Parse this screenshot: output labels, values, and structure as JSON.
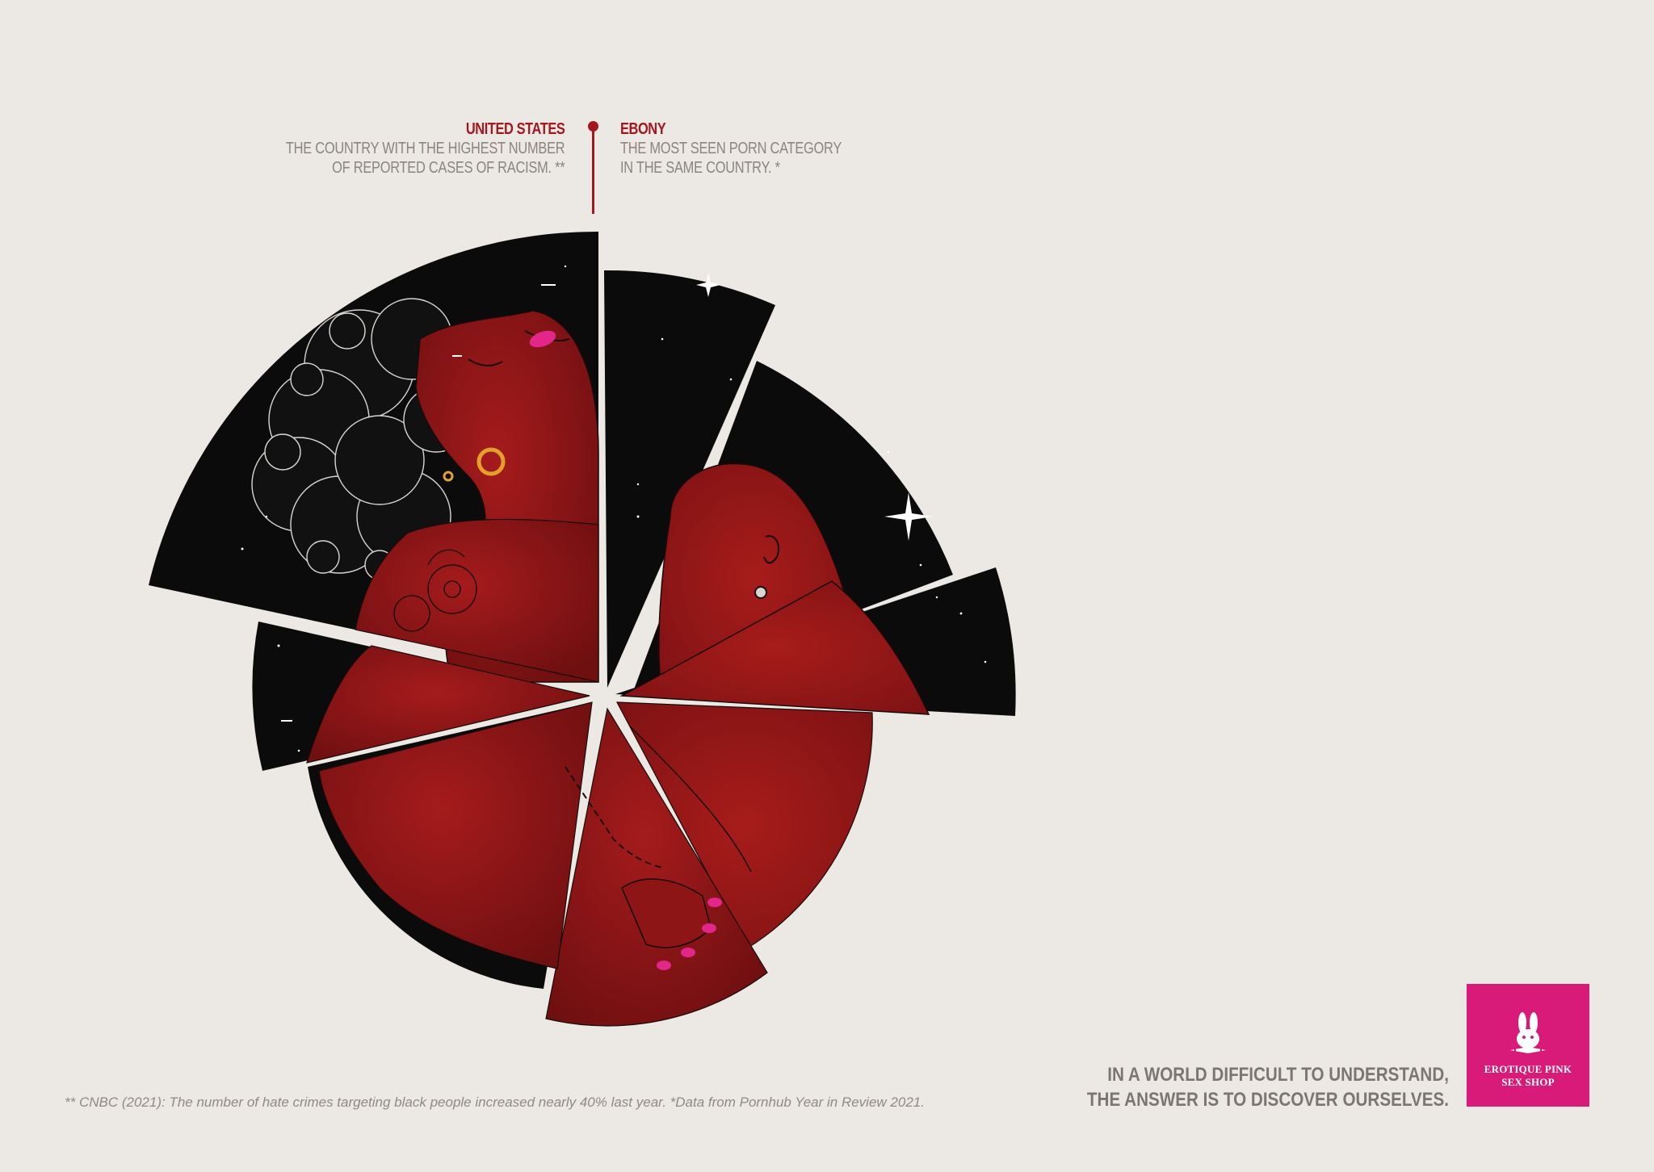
{
  "callouts": {
    "left": {
      "title": "UNITED STATES",
      "line1": "THE COUNTRY WITH THE HIGHEST NUMBER",
      "line2": "OF REPORTED CASES OF RACISM. **"
    },
    "right": {
      "title": "EBONY",
      "line1": "THE MOST SEEN PORN CATEGORY",
      "line2": "IN THE SAME COUNTRY. *"
    }
  },
  "footnote": "** CNBC (2021): The number of hate crimes targeting black people increased nearly 40% last year. *Data from Pornhub Year in Review 2021.",
  "slogan": {
    "line1": "IN A WORLD DIFFICULT TO UNDERSTAND,",
    "line2": "THE ANSWER IS TO DISCOVER OURSELVES."
  },
  "logo": {
    "icon": "rabbit-icon",
    "name_line1": "EROTIQUE PINK",
    "name_line2": "SEX SHOP"
  },
  "colors": {
    "background": "#ece8e3",
    "accent_red": "#a3171f",
    "brand_pink": "#d81a78",
    "night_sky": "#0b0b0c",
    "skin_red": "#8e1516"
  }
}
